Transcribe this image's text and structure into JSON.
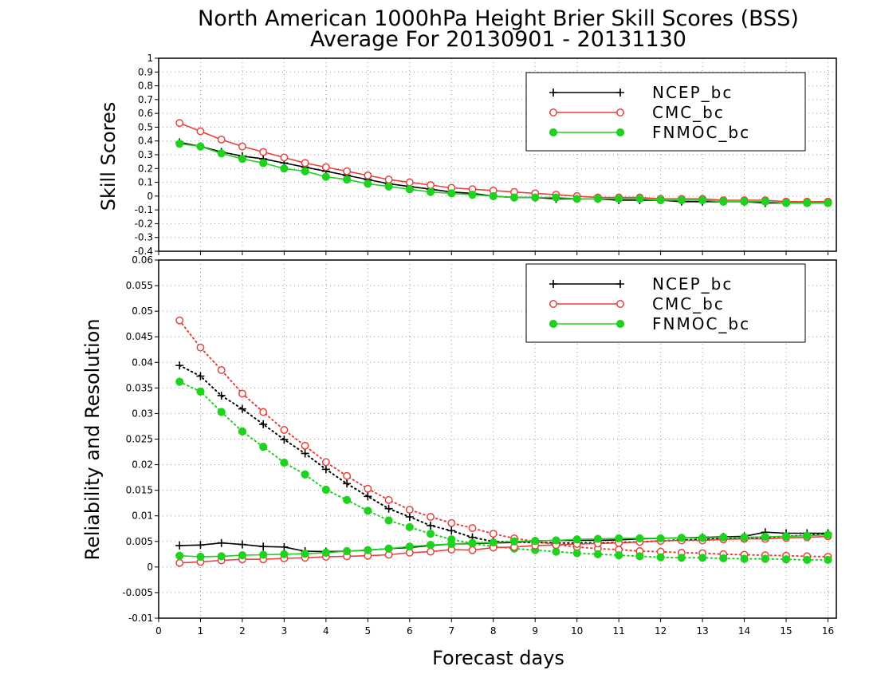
{
  "title_line1": "North American 1000hPa Height Brier Skill Scores (BSS)",
  "title_line2": "Average For 20130901 - 20131130",
  "xlabel": "Forecast days",
  "colors": {
    "NCEP_bc": "#000000",
    "CMC_bc": "#e8413c",
    "FNMOC_bc": "#1fd21f",
    "grid": "#9a9a9a"
  },
  "chart_data": [
    {
      "type": "line",
      "ylabel": "Skill Scores",
      "xlim": [
        0,
        16.2
      ],
      "ylim": [
        -0.4,
        1
      ],
      "x_ticks": [
        0,
        1,
        2,
        3,
        4,
        5,
        6,
        7,
        8,
        9,
        10,
        11,
        12,
        13,
        14,
        15,
        16
      ],
      "y_ticks": [
        -0.4,
        -0.3,
        -0.2,
        -0.1,
        0,
        0.1,
        0.2,
        0.3,
        0.4,
        0.5,
        0.6,
        0.7,
        0.8,
        0.9,
        1
      ],
      "grid": true,
      "legend_position": "top-right",
      "x": [
        0.5,
        1,
        1.5,
        2,
        2.5,
        3,
        3.5,
        4,
        4.5,
        5,
        5.5,
        6,
        6.5,
        7,
        7.5,
        8,
        8.5,
        9,
        9.5,
        10,
        10.5,
        11,
        11.5,
        12,
        12.5,
        13,
        13.5,
        14,
        14.5,
        15,
        15.5,
        16
      ],
      "series": [
        {
          "name": "NCEP_bc",
          "style": "solid",
          "marker": "plus",
          "values": [
            0.39,
            0.36,
            0.32,
            0.29,
            0.27,
            0.24,
            0.21,
            0.18,
            0.15,
            0.12,
            0.09,
            0.07,
            0.05,
            0.03,
            0.02,
            0.0,
            -0.01,
            -0.01,
            -0.02,
            -0.02,
            -0.02,
            -0.03,
            -0.03,
            -0.03,
            -0.04,
            -0.04,
            -0.04,
            -0.04,
            -0.05,
            -0.05,
            -0.05,
            -0.05
          ]
        },
        {
          "name": "CMC_bc",
          "style": "solid",
          "marker": "circle",
          "values": [
            0.53,
            0.47,
            0.41,
            0.36,
            0.32,
            0.28,
            0.24,
            0.21,
            0.18,
            0.15,
            0.12,
            0.1,
            0.08,
            0.06,
            0.05,
            0.04,
            0.03,
            0.02,
            0.01,
            0.0,
            -0.01,
            -0.01,
            -0.01,
            -0.02,
            -0.02,
            -0.02,
            -0.03,
            -0.03,
            -0.03,
            -0.04,
            -0.04,
            -0.04
          ]
        },
        {
          "name": "FNMOC_bc",
          "style": "solid",
          "marker": "filled-circle",
          "values": [
            0.38,
            0.36,
            0.31,
            0.27,
            0.24,
            0.2,
            0.18,
            0.14,
            0.12,
            0.09,
            0.07,
            0.05,
            0.03,
            0.02,
            0.01,
            0.0,
            -0.01,
            -0.01,
            -0.01,
            -0.02,
            -0.02,
            -0.02,
            -0.02,
            -0.03,
            -0.03,
            -0.03,
            -0.04,
            -0.04,
            -0.04,
            -0.05,
            -0.05,
            -0.05
          ]
        }
      ]
    },
    {
      "type": "line",
      "ylabel": "Reliability and Resolution",
      "xlim": [
        0,
        16.2
      ],
      "ylim": [
        -0.01,
        0.06
      ],
      "x_ticks": [
        0,
        1,
        2,
        3,
        4,
        5,
        6,
        7,
        8,
        9,
        10,
        11,
        12,
        13,
        14,
        15,
        16
      ],
      "y_ticks": [
        -0.01,
        -0.005,
        0,
        0.005,
        0.01,
        0.015,
        0.02,
        0.025,
        0.03,
        0.035,
        0.04,
        0.045,
        0.05,
        0.055,
        0.06
      ],
      "grid": true,
      "legend_position": "top-right",
      "x": [
        0.5,
        1,
        1.5,
        2,
        2.5,
        3,
        3.5,
        4,
        4.5,
        5,
        5.5,
        6,
        6.5,
        7,
        7.5,
        8,
        8.5,
        9,
        9.5,
        10,
        10.5,
        11,
        11.5,
        12,
        12.5,
        13,
        13.5,
        14,
        14.5,
        15,
        15.5,
        16
      ],
      "series": [
        {
          "name": "NCEP_bc",
          "component": "resolution",
          "style": "dotted",
          "marker": "plus",
          "values": [
            0.0394,
            0.0373,
            0.0335,
            0.0309,
            0.0279,
            0.0249,
            0.0222,
            0.0191,
            0.0163,
            0.0138,
            0.0114,
            0.0098,
            0.0081,
            0.0071,
            0.0058,
            0.005,
            0.0049,
            0.0048,
            0.0047,
            0.0047,
            0.0047,
            0.0048,
            0.0049,
            0.0051,
            0.0053,
            0.0054,
            0.0056,
            0.0056,
            0.0058,
            0.006,
            0.0062,
            0.0065
          ]
        },
        {
          "name": "CMC_bc",
          "component": "resolution",
          "style": "dotted",
          "marker": "circle",
          "values": [
            0.0482,
            0.0429,
            0.0385,
            0.0339,
            0.0303,
            0.0268,
            0.0237,
            0.0205,
            0.0178,
            0.0153,
            0.0131,
            0.0112,
            0.0098,
            0.0086,
            0.0076,
            0.0065,
            0.0056,
            0.005,
            0.0044,
            0.0039,
            0.0036,
            0.0034,
            0.0031,
            0.003,
            0.0028,
            0.0027,
            0.0025,
            0.0024,
            0.0023,
            0.0022,
            0.0021,
            0.002
          ]
        },
        {
          "name": "FNMOC_bc",
          "component": "resolution",
          "style": "dotted",
          "marker": "filled-circle",
          "values": [
            0.0362,
            0.0343,
            0.0303,
            0.0265,
            0.0235,
            0.0204,
            0.0181,
            0.0151,
            0.0131,
            0.011,
            0.0091,
            0.0078,
            0.0065,
            0.0054,
            0.0046,
            0.004,
            0.0036,
            0.0033,
            0.003,
            0.0027,
            0.0025,
            0.0023,
            0.0021,
            0.0019,
            0.0018,
            0.0018,
            0.0017,
            0.0016,
            0.0016,
            0.0015,
            0.0014,
            0.0014
          ]
        },
        {
          "name": "NCEP_bc",
          "component": "reliability",
          "style": "solid",
          "marker": "plus",
          "values": [
            0.0042,
            0.0043,
            0.0047,
            0.0044,
            0.004,
            0.0039,
            0.0031,
            0.003,
            0.0031,
            0.0033,
            0.0036,
            0.0038,
            0.0042,
            0.0045,
            0.0046,
            0.0047,
            0.0048,
            0.0051,
            0.0052,
            0.0052,
            0.0052,
            0.0053,
            0.0055,
            0.0056,
            0.0057,
            0.0058,
            0.0059,
            0.006,
            0.0068,
            0.0066,
            0.0066,
            0.0066
          ]
        },
        {
          "name": "CMC_bc",
          "component": "reliability",
          "style": "solid",
          "marker": "circle",
          "values": [
            0.0008,
            0.001,
            0.0013,
            0.0015,
            0.0015,
            0.0017,
            0.0018,
            0.002,
            0.0021,
            0.0022,
            0.0024,
            0.0028,
            0.003,
            0.0034,
            0.0033,
            0.0038,
            0.0039,
            0.0042,
            0.0043,
            0.0045,
            0.0046,
            0.0047,
            0.0049,
            0.0051,
            0.0052,
            0.0052,
            0.0054,
            0.0055,
            0.0055,
            0.0057,
            0.0058,
            0.006
          ]
        },
        {
          "name": "FNMOC_bc",
          "component": "reliability",
          "style": "solid",
          "marker": "filled-circle",
          "values": [
            0.0022,
            0.002,
            0.0021,
            0.0023,
            0.0024,
            0.0025,
            0.0026,
            0.0028,
            0.0031,
            0.0033,
            0.0036,
            0.004,
            0.0043,
            0.0045,
            0.0047,
            0.0048,
            0.005,
            0.0051,
            0.0052,
            0.0054,
            0.0055,
            0.0056,
            0.0056,
            0.0056,
            0.0057,
            0.0057,
            0.0058,
            0.0058,
            0.0059,
            0.006,
            0.0061,
            0.0063
          ]
        }
      ]
    }
  ]
}
